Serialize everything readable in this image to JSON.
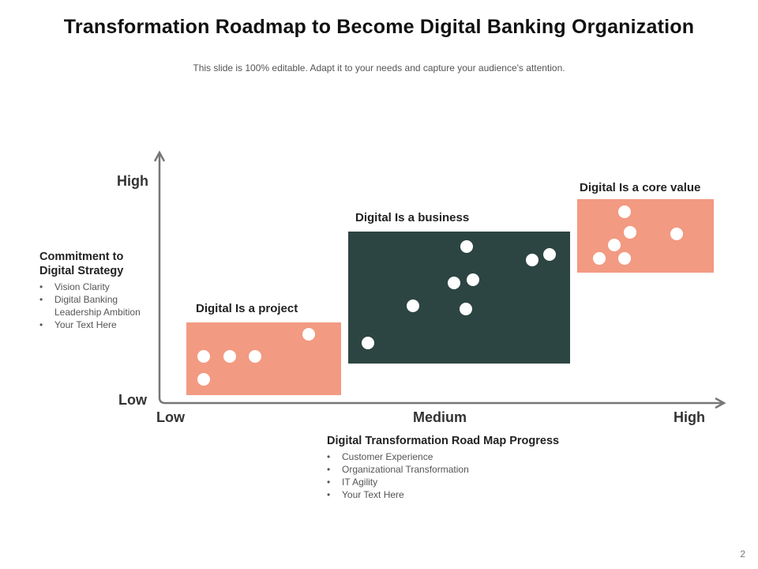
{
  "title": "Transformation Roadmap to Become Digital Banking Organization",
  "subtitle": "This slide is 100% editable. Adapt it to your needs and capture your audience's attention.",
  "y_axis": {
    "high": "High",
    "low": "Low"
  },
  "x_axis": {
    "low": "Low",
    "medium": "Medium",
    "high": "High"
  },
  "colors": {
    "salmon": "#f29a82",
    "dark_green": "#2d4542",
    "axis": "#777777"
  },
  "stages": [
    {
      "label": "Digital Is a project",
      "color": "salmon"
    },
    {
      "label": "Digital Is a business",
      "color": "dark_green"
    },
    {
      "label": "Digital Is a core value",
      "color": "salmon"
    }
  ],
  "y_axis_note": {
    "title": "Commitment to Digital Strategy",
    "items": [
      "Vision Clarity",
      "Digital Banking Leadership Ambition",
      "Your Text Here"
    ]
  },
  "x_axis_note": {
    "title": "Digital Transformation Road Map Progress",
    "items": [
      "Customer Experience",
      "Organizational Transformation",
      "IT Agility",
      "Your Text Here"
    ]
  },
  "page_number": "2"
}
